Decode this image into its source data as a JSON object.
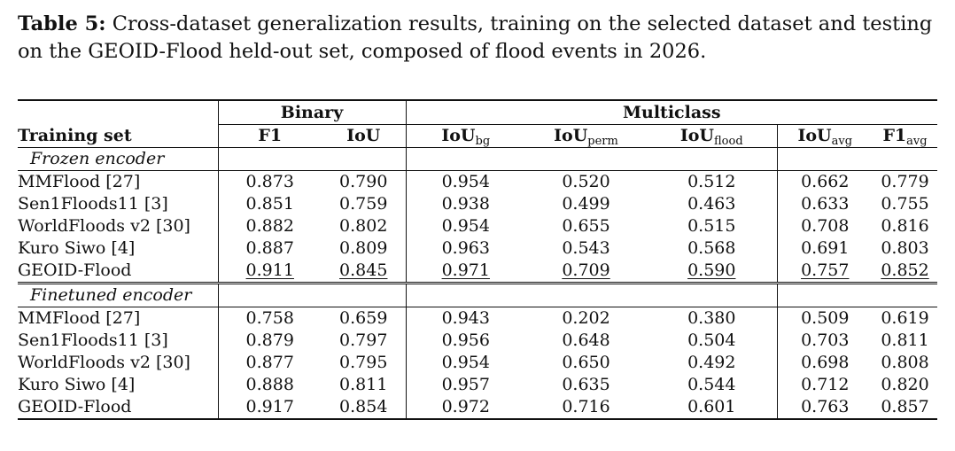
{
  "caption": {
    "label": "Table 5:",
    "text": " Cross-dataset generalization results, training on the selected dataset and testing on the GEOID-Flood held-out set, composed of flood events in 2026."
  },
  "table": {
    "groups": {
      "binary": "Binary",
      "multiclass": "Multiclass"
    },
    "headers": {
      "training_set": "Training set",
      "f1": "F1",
      "iou": "IoU",
      "iou_bg": "IoU",
      "iou_bg_sub": "bg",
      "iou_perm": "IoU",
      "iou_perm_sub": "perm",
      "iou_flood": "IoU",
      "iou_flood_sub": "flood",
      "iou_avg": "IoU",
      "iou_avg_sub": "avg",
      "f1_avg": "F1",
      "f1_avg_sub": "avg"
    },
    "sections": [
      {
        "title": "Frozen encoder",
        "rows": [
          {
            "name": "MMFlood [27]",
            "values": [
              "0.873",
              "0.790",
              "0.954",
              "0.520",
              "0.512",
              "0.662",
              "0.779"
            ]
          },
          {
            "name": "Sen1Floods11 [3]",
            "values": [
              "0.851",
              "0.759",
              "0.938",
              "0.499",
              "0.463",
              "0.633",
              "0.755"
            ]
          },
          {
            "name": "WorldFloods v2 [30]",
            "values": [
              "0.882",
              "0.802",
              "0.954",
              "0.655",
              "0.515",
              "0.708",
              "0.816"
            ]
          },
          {
            "name": "Kuro Siwo [4]",
            "values": [
              "0.887",
              "0.809",
              "0.963",
              "0.543",
              "0.568",
              "0.691",
              "0.803"
            ]
          },
          {
            "name": "GEOID-Flood",
            "values": [
              "0.911",
              "0.845",
              "0.971",
              "0.709",
              "0.590",
              "0.757",
              "0.852"
            ]
          }
        ]
      },
      {
        "title": "Finetuned encoder",
        "rows": [
          {
            "name": "MMFlood [27]",
            "values": [
              "0.758",
              "0.659",
              "0.943",
              "0.202",
              "0.380",
              "0.509",
              "0.619"
            ]
          },
          {
            "name": "Sen1Floods11 [3]",
            "values": [
              "0.879",
              "0.797",
              "0.956",
              "0.648",
              "0.504",
              "0.703",
              "0.811"
            ]
          },
          {
            "name": "WorldFloods v2 [30]",
            "values": [
              "0.877",
              "0.795",
              "0.954",
              "0.650",
              "0.492",
              "0.698",
              "0.808"
            ]
          },
          {
            "name": "Kuro Siwo [4]",
            "values": [
              "0.888",
              "0.811",
              "0.957",
              "0.635",
              "0.544",
              "0.712",
              "0.820"
            ]
          },
          {
            "name": "GEOID-Flood",
            "values": [
              "0.917",
              "0.854",
              "0.972",
              "0.716",
              "0.601",
              "0.763",
              "0.857"
            ]
          }
        ]
      }
    ]
  }
}
